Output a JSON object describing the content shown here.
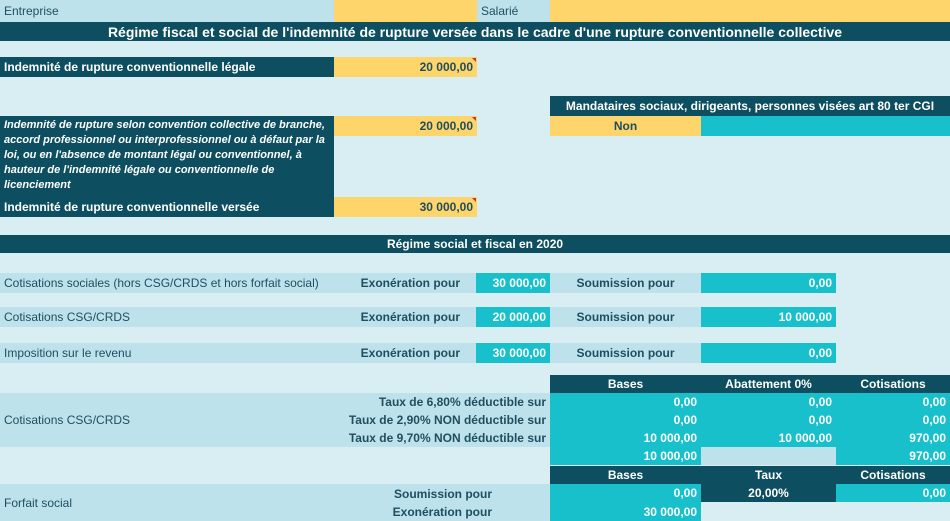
{
  "header": {
    "entreprise_label": "Entreprise",
    "salarie_label": "Salarié",
    "title": "Régime fiscal et social de l'indemnité de rupture versée dans le cadre d'une rupture conventionnelle collective"
  },
  "inputs": {
    "legale_label": "Indemnité de rupture conventionnelle légale",
    "legale_value": "20 000,00",
    "convention_label": "Indemnité de rupture selon convention collective de branche, accord professionnel ou interprofessionnel ou à défaut par la loi, ou en l'absence de montant légal ou conventionnel, à hauteur de l'indemnité légale ou conventionnelle de licenciement",
    "convention_value": "20 000,00",
    "versee_label": "Indemnité de rupture conventionnelle versée",
    "versee_value": "30 000,00",
    "mandataires_label": "Mandataires sociaux, dirigeants, personnes visées art 80 ter CGI",
    "mandataires_value": "Non"
  },
  "regime": {
    "title": "Régime social et fiscal en 2020",
    "exoneration_label": "Exonération pour",
    "soumission_label": "Soumission pour",
    "rows": [
      {
        "label": "Cotisations sociales (hors CSG/CRDS et hors forfait social)",
        "exoneration": "30 000,00",
        "soumission": "0,00"
      },
      {
        "label": "Cotisations CSG/CRDS",
        "exoneration": "20 000,00",
        "soumission": "10 000,00"
      },
      {
        "label": "Imposition sur le revenu",
        "exoneration": "30 000,00",
        "soumission": "0,00"
      }
    ]
  },
  "csg": {
    "label": "Cotisations CSG/CRDS",
    "headers": [
      "Bases",
      "Abattement 0%",
      "Cotisations"
    ],
    "rows": [
      {
        "label": "Taux de 6,80% déductible sur",
        "bases": "0,00",
        "abattement": "0,00",
        "cotisations": "0,00"
      },
      {
        "label": "Taux de 2,90% NON déductible sur",
        "bases": "0,00",
        "abattement": "0,00",
        "cotisations": "0,00"
      },
      {
        "label": "Taux de 9,70% NON déductible sur",
        "bases": "10 000,00",
        "abattement": "10 000,00",
        "cotisations": "970,00"
      }
    ],
    "total_bases": "10 000,00",
    "total_cotisations": "970,00"
  },
  "forfait": {
    "label": "Forfait social",
    "headers": [
      "Bases",
      "Taux",
      "Cotisations"
    ],
    "soumission_label": "Soumission pour",
    "soumission_bases": "0,00",
    "taux": "20,00%",
    "cotisations": "0,00",
    "exoneration_label": "Exonération pour",
    "exoneration_bases": "30 000,00"
  }
}
